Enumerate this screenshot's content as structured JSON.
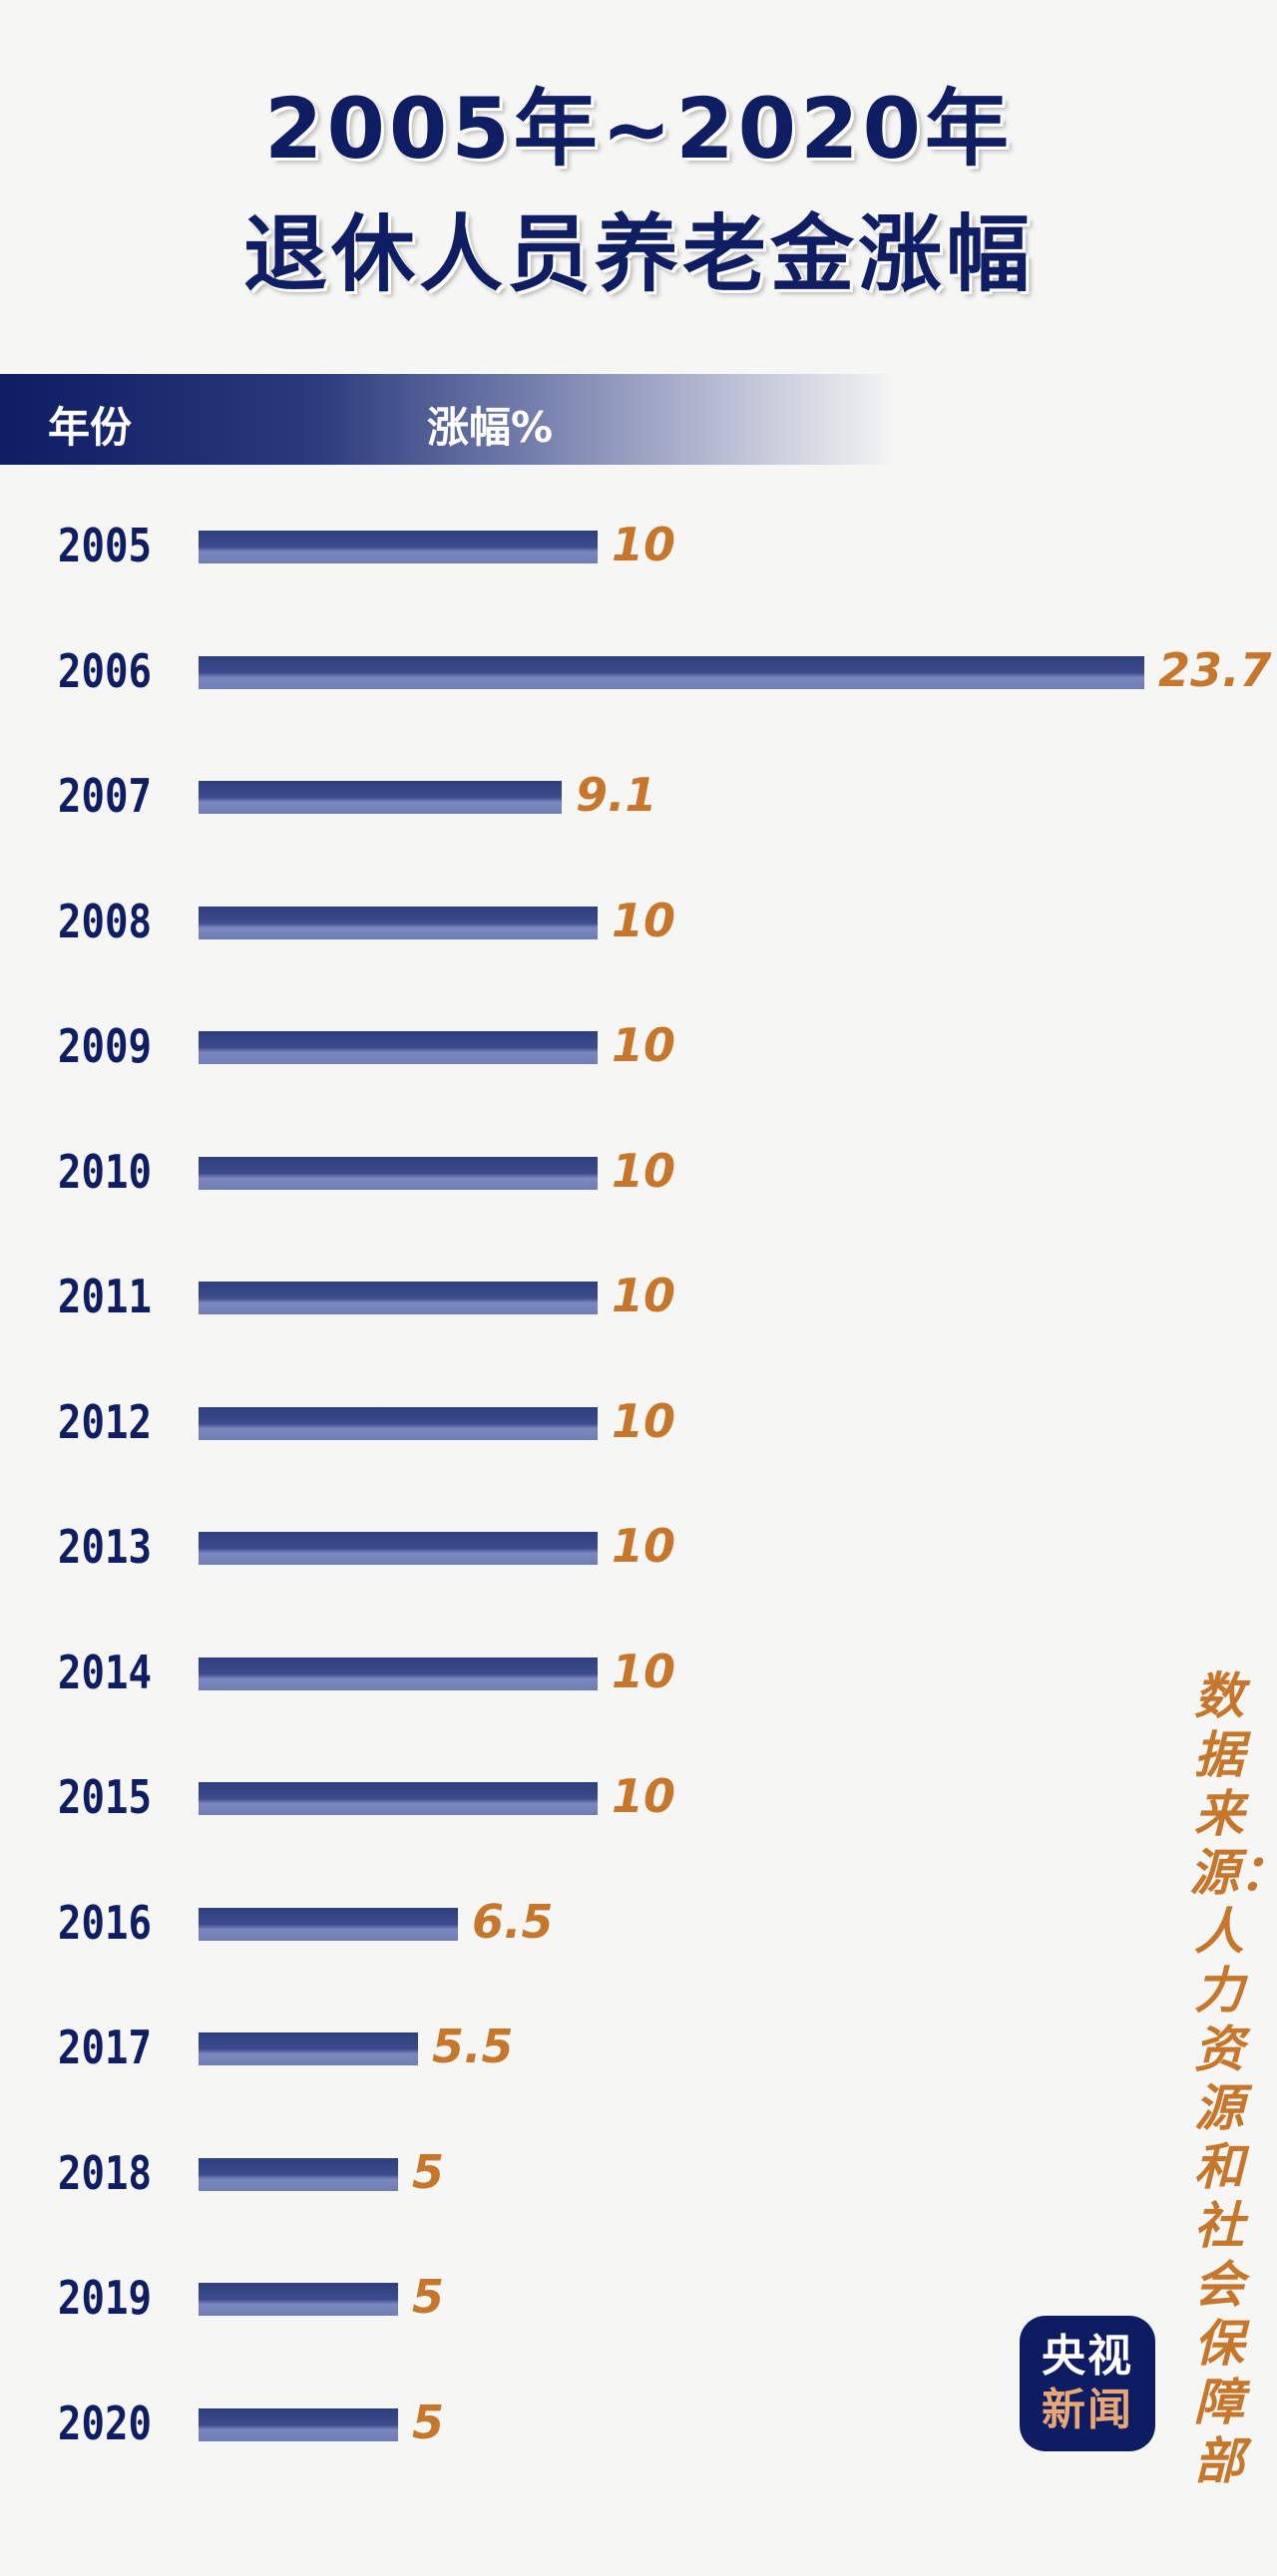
{
  "title_line1": "2005年~2020年",
  "title_line2": "退休人员养老金涨幅",
  "header": {
    "year_label": "年份",
    "value_label": "涨幅%"
  },
  "source": "数据来源：人力资源和社会保障部",
  "logo": {
    "line1": "央视",
    "line2": "新闻"
  },
  "colors": {
    "bar": "#2e3f80",
    "year_text": "#0f1e63",
    "value_text": "#c6772b"
  },
  "chart_data": {
    "type": "bar",
    "orientation": "horizontal",
    "title": "2005年~2020年 退休人员养老金涨幅",
    "xlabel": "涨幅%",
    "ylabel": "年份",
    "categories": [
      "2005",
      "2006",
      "2007",
      "2008",
      "2009",
      "2010",
      "2011",
      "2012",
      "2013",
      "2014",
      "2015",
      "2016",
      "2017",
      "2018",
      "2019",
      "2020"
    ],
    "values": [
      10,
      23.7,
      9.1,
      10,
      10,
      10,
      10,
      10,
      10,
      10,
      10,
      6.5,
      5.5,
      5,
      5,
      5
    ],
    "value_labels": [
      "10",
      "23.7",
      "9.1",
      "10",
      "10",
      "10",
      "10",
      "10",
      "10",
      "10",
      "10",
      "6.5",
      "5.5",
      "5",
      "5",
      "5"
    ],
    "grid": false
  }
}
